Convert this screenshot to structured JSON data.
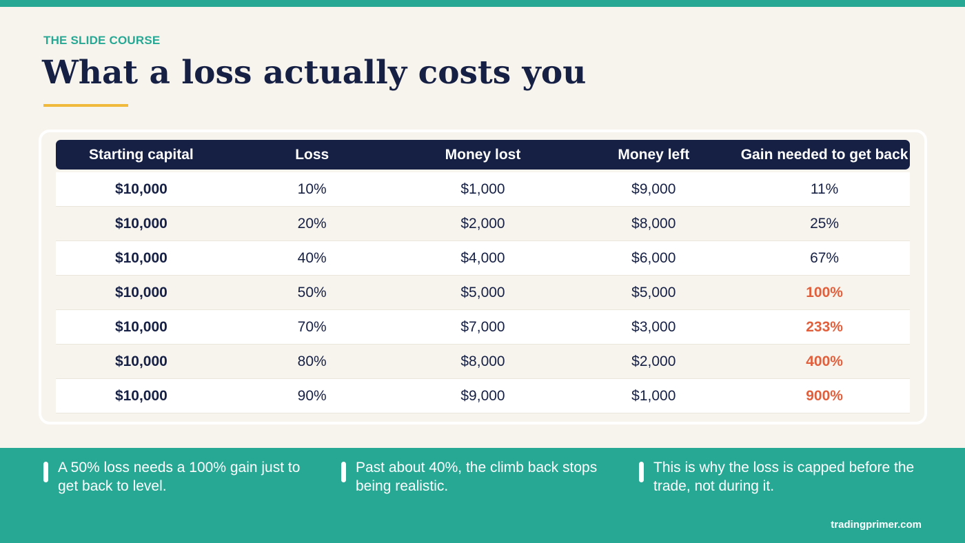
{
  "header": {
    "eyebrow": "THE SLIDE COURSE",
    "title": "What a loss actually costs you"
  },
  "table": {
    "headers": [
      "Starting capital",
      "Loss",
      "Money lost",
      "Money left",
      "Gain needed to get back"
    ],
    "rows": [
      [
        "$10,000",
        "10%",
        "$1,000",
        "$9,000",
        "11%"
      ],
      [
        "$10,000",
        "20%",
        "$2,000",
        "$8,000",
        "25%"
      ],
      [
        "$10,000",
        "40%",
        "$4,000",
        "$6,000",
        "67%"
      ],
      [
        "$10,000",
        "50%",
        "$5,000",
        "$5,000",
        "100%"
      ],
      [
        "$10,000",
        "70%",
        "$7,000",
        "$3,000",
        "233%"
      ],
      [
        "$10,000",
        "80%",
        "$8,000",
        "$2,000",
        "400%"
      ],
      [
        "$10,000",
        "90%",
        "$9,000",
        "$1,000",
        "900%"
      ]
    ],
    "highlighted_rows": [
      3,
      4,
      5,
      6
    ]
  },
  "notes": [
    "A 50% loss needs a 100% gain just to get back to level.",
    "Past about 40%, the climb back stops being realistic.",
    "This is why the loss is capped before the trade, not during it."
  ],
  "footer": {
    "url": "tradingprimer.com"
  },
  "colors": {
    "accent": "#26a894",
    "navy": "#162044",
    "gold": "#f0b93c",
    "warning": "#e0603d",
    "background": "#f7f4ee"
  }
}
